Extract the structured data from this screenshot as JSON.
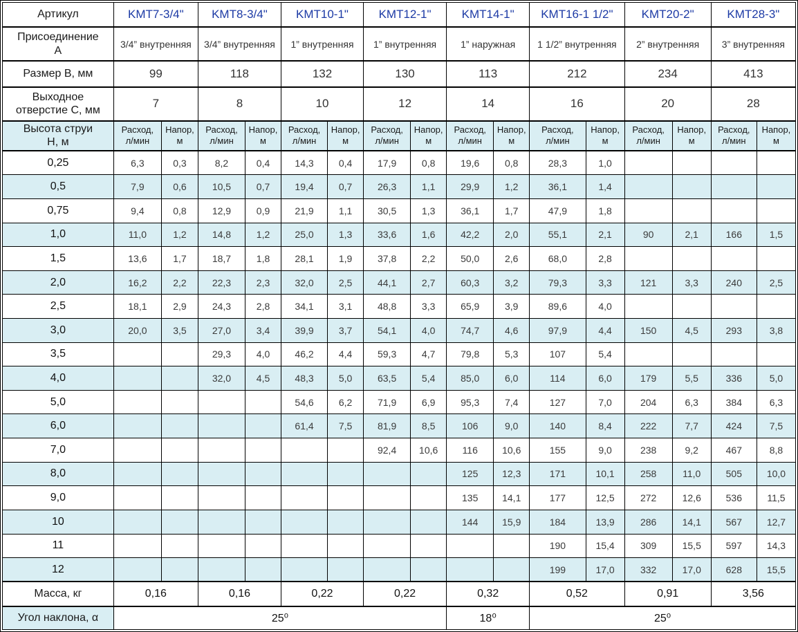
{
  "table": {
    "labels": {
      "article": "Артикул",
      "connection": "Присоединение\nА",
      "size_b": "Размер В, мм",
      "outlet_c": "Выходное\nотверстие С, мм",
      "jet_height": "Высота струи\nН, м",
      "mass": "Масса, кг",
      "angle": "Угол наклона, α"
    },
    "subheaders": {
      "flow": "Расход,\nл/мин",
      "head": "Напор,\nм"
    },
    "products": [
      {
        "name": "KMT7-3/4\"",
        "connection": "3/4” внутренняя",
        "size_b": "99",
        "outlet_c": "7",
        "mass": "0,16"
      },
      {
        "name": "KMT8-3/4\"",
        "connection": "3/4” внутренняя",
        "size_b": "118",
        "outlet_c": "8",
        "mass": "0,16"
      },
      {
        "name": "KMT10-1\"",
        "connection": "1” внутренняя",
        "size_b": "132",
        "outlet_c": "10",
        "mass": "0,22"
      },
      {
        "name": "KMT12-1\"",
        "connection": "1” внутренняя",
        "size_b": "130",
        "outlet_c": "12",
        "mass": "0,22"
      },
      {
        "name": "KMT14-1\"",
        "connection": "1” наружная",
        "size_b": "113",
        "outlet_c": "14",
        "mass": "0,32"
      },
      {
        "name": "KMT16-1 1/2\"",
        "connection": "1 1/2” внутренняя",
        "size_b": "212",
        "outlet_c": "16",
        "mass": "0,52"
      },
      {
        "name": "KMT20-2\"",
        "connection": "2” внутренняя",
        "size_b": "234",
        "outlet_c": "20",
        "mass": "0,91"
      },
      {
        "name": "KMT28-3\"",
        "connection": "3” внутренняя",
        "size_b": "413",
        "outlet_c": "28",
        "mass": "3,56"
      }
    ],
    "height_rows": [
      {
        "h": "0,25",
        "values": [
          [
            "6,3",
            "0,3"
          ],
          [
            "8,2",
            "0,4"
          ],
          [
            "14,3",
            "0,4"
          ],
          [
            "17,9",
            "0,8"
          ],
          [
            "19,6",
            "0,8"
          ],
          [
            "28,3",
            "1,0"
          ],
          [
            "",
            ""
          ],
          [
            "",
            ""
          ]
        ]
      },
      {
        "h": "0,5",
        "values": [
          [
            "7,9",
            "0,6"
          ],
          [
            "10,5",
            "0,7"
          ],
          [
            "19,4",
            "0,7"
          ],
          [
            "26,3",
            "1,1"
          ],
          [
            "29,9",
            "1,2"
          ],
          [
            "36,1",
            "1,4"
          ],
          [
            "",
            ""
          ],
          [
            "",
            ""
          ]
        ]
      },
      {
        "h": "0,75",
        "values": [
          [
            "9,4",
            "0,8"
          ],
          [
            "12,9",
            "0,9"
          ],
          [
            "21,9",
            "1,1"
          ],
          [
            "30,5",
            "1,3"
          ],
          [
            "36,1",
            "1,7"
          ],
          [
            "47,9",
            "1,8"
          ],
          [
            "",
            ""
          ],
          [
            "",
            ""
          ]
        ]
      },
      {
        "h": "1,0",
        "values": [
          [
            "11,0",
            "1,2"
          ],
          [
            "14,8",
            "1,2"
          ],
          [
            "25,0",
            "1,3"
          ],
          [
            "33,6",
            "1,6"
          ],
          [
            "42,2",
            "2,0"
          ],
          [
            "55,1",
            "2,1"
          ],
          [
            "90",
            "2,1"
          ],
          [
            "166",
            "1,5"
          ]
        ]
      },
      {
        "h": "1,5",
        "values": [
          [
            "13,6",
            "1,7"
          ],
          [
            "18,7",
            "1,8"
          ],
          [
            "28,1",
            "1,9"
          ],
          [
            "37,8",
            "2,2"
          ],
          [
            "50,0",
            "2,6"
          ],
          [
            "68,0",
            "2,8"
          ],
          [
            "",
            ""
          ],
          [
            "",
            ""
          ]
        ]
      },
      {
        "h": "2,0",
        "values": [
          [
            "16,2",
            "2,2"
          ],
          [
            "22,3",
            "2,3"
          ],
          [
            "32,0",
            "2,5"
          ],
          [
            "44,1",
            "2,7"
          ],
          [
            "60,3",
            "3,2"
          ],
          [
            "79,3",
            "3,3"
          ],
          [
            "121",
            "3,3"
          ],
          [
            "240",
            "2,5"
          ]
        ]
      },
      {
        "h": "2,5",
        "values": [
          [
            "18,1",
            "2,9"
          ],
          [
            "24,3",
            "2,8"
          ],
          [
            "34,1",
            "3,1"
          ],
          [
            "48,8",
            "3,3"
          ],
          [
            "65,9",
            "3,9"
          ],
          [
            "89,6",
            "4,0"
          ],
          [
            "",
            ""
          ],
          [
            "",
            ""
          ]
        ]
      },
      {
        "h": "3,0",
        "values": [
          [
            "20,0",
            "3,5"
          ],
          [
            "27,0",
            "3,4"
          ],
          [
            "39,9",
            "3,7"
          ],
          [
            "54,1",
            "4,0"
          ],
          [
            "74,7",
            "4,6"
          ],
          [
            "97,9",
            "4,4"
          ],
          [
            "150",
            "4,5"
          ],
          [
            "293",
            "3,8"
          ]
        ]
      },
      {
        "h": "3,5",
        "values": [
          [
            "",
            ""
          ],
          [
            "29,3",
            "4,0"
          ],
          [
            "46,2",
            "4,4"
          ],
          [
            "59,3",
            "4,7"
          ],
          [
            "79,8",
            "5,3"
          ],
          [
            "107",
            "5,4"
          ],
          [
            "",
            ""
          ],
          [
            "",
            ""
          ]
        ]
      },
      {
        "h": "4,0",
        "values": [
          [
            "",
            ""
          ],
          [
            "32,0",
            "4,5"
          ],
          [
            "48,3",
            "5,0"
          ],
          [
            "63,5",
            "5,4"
          ],
          [
            "85,0",
            "6,0"
          ],
          [
            "114",
            "6,0"
          ],
          [
            "179",
            "5,5"
          ],
          [
            "336",
            "5,0"
          ]
        ]
      },
      {
        "h": "5,0",
        "values": [
          [
            "",
            ""
          ],
          [
            "",
            ""
          ],
          [
            "54,6",
            "6,2"
          ],
          [
            "71,9",
            "6,9"
          ],
          [
            "95,3",
            "7,4"
          ],
          [
            "127",
            "7,0"
          ],
          [
            "204",
            "6,3"
          ],
          [
            "384",
            "6,3"
          ]
        ]
      },
      {
        "h": "6,0",
        "values": [
          [
            "",
            ""
          ],
          [
            "",
            ""
          ],
          [
            "61,4",
            "7,5"
          ],
          [
            "81,9",
            "8,5"
          ],
          [
            "106",
            "9,0"
          ],
          [
            "140",
            "8,4"
          ],
          [
            "222",
            "7,7"
          ],
          [
            "424",
            "7,5"
          ]
        ]
      },
      {
        "h": "7,0",
        "values": [
          [
            "",
            ""
          ],
          [
            "",
            ""
          ],
          [
            "",
            ""
          ],
          [
            "92,4",
            "10,6"
          ],
          [
            "116",
            "10,6"
          ],
          [
            "155",
            "9,0"
          ],
          [
            "238",
            "9,2"
          ],
          [
            "467",
            "8,8"
          ]
        ]
      },
      {
        "h": "8,0",
        "values": [
          [
            "",
            ""
          ],
          [
            "",
            ""
          ],
          [
            "",
            ""
          ],
          [
            "",
            ""
          ],
          [
            "125",
            "12,3"
          ],
          [
            "171",
            "10,1"
          ],
          [
            "258",
            "11,0"
          ],
          [
            "505",
            "10,0"
          ]
        ]
      },
      {
        "h": "9,0",
        "values": [
          [
            "",
            ""
          ],
          [
            "",
            ""
          ],
          [
            "",
            ""
          ],
          [
            "",
            ""
          ],
          [
            "135",
            "14,1"
          ],
          [
            "177",
            "12,5"
          ],
          [
            "272",
            "12,6"
          ],
          [
            "536",
            "11,5"
          ]
        ]
      },
      {
        "h": "10",
        "values": [
          [
            "",
            ""
          ],
          [
            "",
            ""
          ],
          [
            "",
            ""
          ],
          [
            "",
            ""
          ],
          [
            "144",
            "15,9"
          ],
          [
            "184",
            "13,9"
          ],
          [
            "286",
            "14,1"
          ],
          [
            "567",
            "12,7"
          ]
        ]
      },
      {
        "h": "11",
        "values": [
          [
            "",
            ""
          ],
          [
            "",
            ""
          ],
          [
            "",
            ""
          ],
          [
            "",
            ""
          ],
          [
            "",
            ""
          ],
          [
            "190",
            "15,4"
          ],
          [
            "309",
            "15,5"
          ],
          [
            "597",
            "14,3"
          ]
        ]
      },
      {
        "h": "12",
        "values": [
          [
            "",
            ""
          ],
          [
            "",
            ""
          ],
          [
            "",
            ""
          ],
          [
            "",
            ""
          ],
          [
            "",
            ""
          ],
          [
            "199",
            "17,0"
          ],
          [
            "332",
            "17,0"
          ],
          [
            "628",
            "15,5"
          ]
        ]
      }
    ],
    "angle_spans": [
      {
        "text": "25⁰",
        "colspan": 8
      },
      {
        "text": "18⁰",
        "colspan": 2
      },
      {
        "text": "25⁰",
        "colspan": 6
      }
    ],
    "colors": {
      "accent_blue": "#1c3aa5",
      "band_blue": "#d9eef3",
      "border_black": "#000000"
    }
  }
}
